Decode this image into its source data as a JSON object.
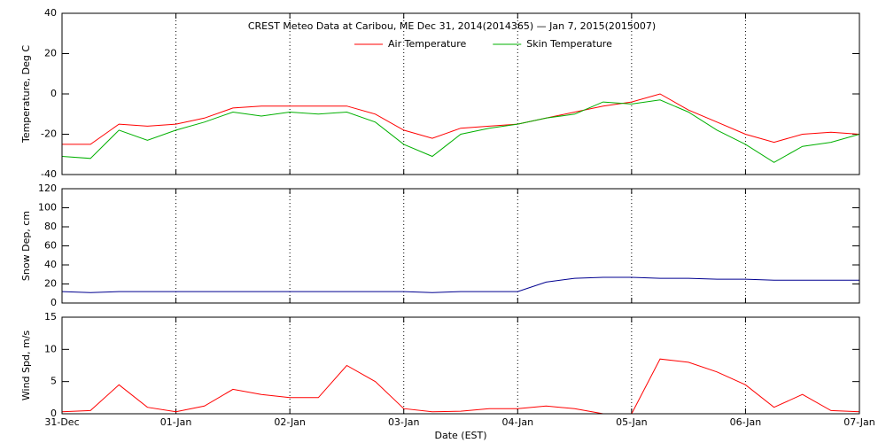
{
  "chart_data": [
    {
      "type": "line",
      "title": "CREST Meteo Data at Caribou, ME   Dec 31, 2014(2014365) — Jan  7, 2015(2015007)",
      "ylabel": "Temperature, Deg C",
      "x": [
        0,
        0.25,
        0.5,
        0.75,
        1,
        1.25,
        1.5,
        1.75,
        2,
        2.25,
        2.5,
        2.75,
        3,
        3.25,
        3.5,
        3.75,
        4,
        4.25,
        4.5,
        4.75,
        5,
        5.25,
        5.5,
        5.75,
        6,
        6.25,
        6.5,
        6.75,
        7
      ],
      "series": [
        {
          "name": "Air Temperature",
          "color": "#ff0000",
          "values": [
            -25,
            -25,
            -15,
            -16,
            -15,
            -12,
            -7,
            -6,
            -6,
            -6,
            -6,
            -10,
            -18,
            -22,
            -17,
            -16,
            -15,
            -12,
            -9,
            -6,
            -4,
            0,
            -8,
            -14,
            -20,
            -24,
            -20,
            -19,
            -20
          ]
        },
        {
          "name": "Skin Temperature",
          "color": "#00b000",
          "values": [
            -31,
            -32,
            -18,
            -23,
            -18,
            -14,
            -9,
            -11,
            -9,
            -10,
            -9,
            -14,
            -25,
            -31,
            -20,
            -17,
            -15,
            -12,
            -10,
            -4,
            -5,
            -3,
            -9,
            -18,
            -25,
            -34,
            -26,
            -24,
            -20
          ]
        }
      ],
      "ylim": [
        -40,
        40
      ],
      "yticks": [
        -40,
        -20,
        0,
        20,
        40
      ],
      "legend": "top"
    },
    {
      "type": "line",
      "ylabel": "Snow Dep, cm",
      "x": [
        0,
        0.25,
        0.5,
        0.75,
        1,
        1.25,
        1.5,
        1.75,
        2,
        2.25,
        2.5,
        2.75,
        3,
        3.25,
        3.5,
        3.75,
        4,
        4.25,
        4.5,
        4.75,
        5,
        5.25,
        5.5,
        5.75,
        6,
        6.25,
        6.5,
        6.75,
        7
      ],
      "series": [
        {
          "color": "#000090",
          "values": [
            12,
            11,
            12,
            12,
            12,
            12,
            12,
            12,
            12,
            12,
            12,
            12,
            12,
            11,
            12,
            12,
            12,
            22,
            26,
            27,
            27,
            26,
            26,
            25,
            25,
            24,
            24,
            24,
            24
          ]
        }
      ],
      "ylim": [
        0,
        120
      ],
      "yticks": [
        0,
        20,
        40,
        60,
        80,
        100,
        120
      ]
    },
    {
      "type": "line",
      "ylabel": "Wind Spd, m/s",
      "xlabel": "Date (EST)",
      "x": [
        0,
        0.25,
        0.5,
        0.75,
        1,
        1.25,
        1.5,
        1.75,
        2,
        2.25,
        2.5,
        2.75,
        3,
        3.25,
        3.5,
        3.75,
        4,
        4.25,
        4.5,
        4.75,
        5,
        5.25,
        5.5,
        5.75,
        6,
        6.25,
        6.5,
        6.75,
        7
      ],
      "series": [
        {
          "color": "#ff0000",
          "values": [
            0.3,
            0.5,
            4.5,
            1,
            0.3,
            1.2,
            3.8,
            3,
            2.5,
            2.5,
            7.5,
            5,
            0.8,
            0.3,
            0.4,
            0.8,
            0.8,
            1.2,
            0.8,
            0,
            0,
            8.5,
            8,
            6.5,
            4.5,
            1,
            3,
            0.5,
            0.3
          ]
        }
      ],
      "ylim": [
        0,
        15
      ],
      "yticks": [
        0,
        5,
        10,
        15
      ],
      "xlim": [
        0,
        7
      ],
      "xticks": [
        {
          "value": 0,
          "label": "31-Dec"
        },
        {
          "value": 1,
          "label": "01-Jan"
        },
        {
          "value": 2,
          "label": "02-Jan"
        },
        {
          "value": 3,
          "label": "03-Jan"
        },
        {
          "value": 4,
          "label": "04-Jan"
        },
        {
          "value": 5,
          "label": "05-Jan"
        },
        {
          "value": 6,
          "label": "06-Jan"
        },
        {
          "value": 7,
          "label": "07-Jan"
        }
      ]
    }
  ]
}
